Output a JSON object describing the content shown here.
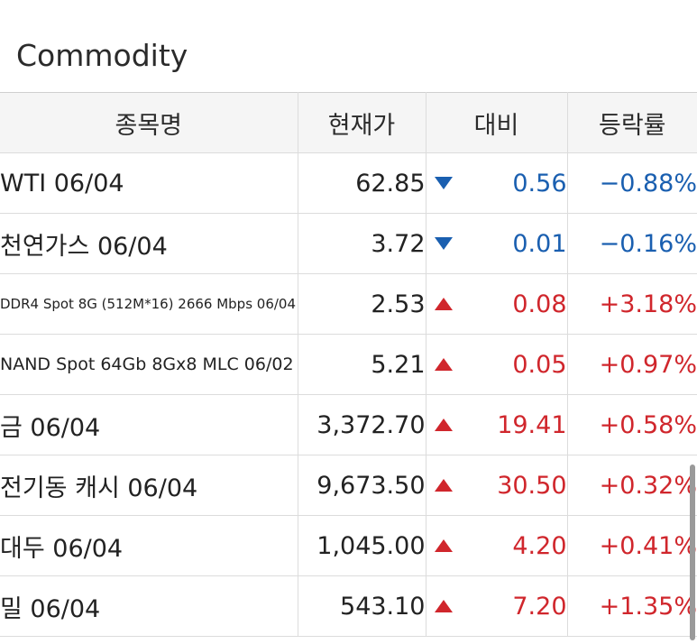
{
  "section": {
    "title": "Commodity"
  },
  "table": {
    "headers": {
      "name": "종목명",
      "price": "현재가",
      "change": "대비",
      "rate": "등락률"
    },
    "rows": [
      {
        "name": "WTI 06/04",
        "price": "62.85",
        "direction": "down",
        "change": "0.56",
        "rate": "−0.88%"
      },
      {
        "name": "천연가스 06/04",
        "price": "3.72",
        "direction": "down",
        "change": "0.01",
        "rate": "−0.16%"
      },
      {
        "name": "DDR4 Spot 8G (512M*16) 2666 Mbps 06/04",
        "price": "2.53",
        "direction": "up",
        "change": "0.08",
        "rate": "+3.18%"
      },
      {
        "name": "NAND Spot 64Gb 8Gx8 MLC 06/02",
        "price": "5.21",
        "direction": "up",
        "change": "0.05",
        "rate": "+0.97%"
      },
      {
        "name": "금 06/04",
        "price": "3,372.70",
        "direction": "up",
        "change": "19.41",
        "rate": "+0.58%"
      },
      {
        "name": "전기동 캐시 06/04",
        "price": "9,673.50",
        "direction": "up",
        "change": "30.50",
        "rate": "+0.32%"
      },
      {
        "name": "대두 06/04",
        "price": "1,045.00",
        "direction": "up",
        "change": "4.20",
        "rate": "+0.41%"
      },
      {
        "name": "밀 06/04",
        "price": "543.10",
        "direction": "up",
        "change": "7.20",
        "rate": "+1.35%"
      }
    ]
  },
  "icons": {
    "up": "triangle-up-icon",
    "down": "triangle-down-icon"
  },
  "colors": {
    "down": "#1a5fb0",
    "up": "#d0262c",
    "header_bg": "#f5f5f5",
    "border": "#dcdcdc"
  }
}
